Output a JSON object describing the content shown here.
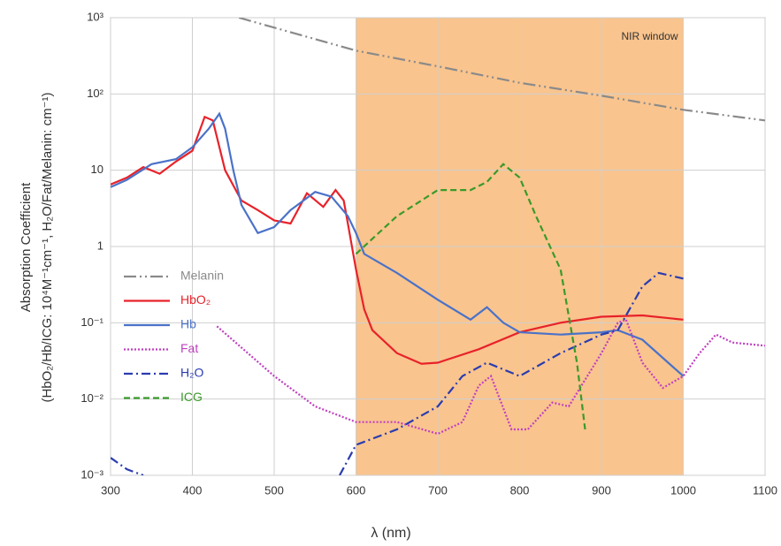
{
  "chart_data": {
    "type": "line",
    "y_label": [
      "Absorption Coefficient",
      "(HbO₂/Hb/ICG: 10⁴M⁻¹cm⁻¹, H₂O/Fat/Melanin: cm⁻¹)"
    ],
    "x_label": "λ (nm)",
    "annotation": "NIR window",
    "window": [
      600,
      1000
    ],
    "window_color": "#f9c48e",
    "xlim": [
      300,
      1100
    ],
    "xticks": [
      300,
      400,
      500,
      600,
      700,
      800,
      900,
      1000,
      1100
    ],
    "ylim": [
      0.001,
      1000
    ],
    "yticks": [
      {
        "value": 0.001,
        "label": "10⁻³"
      },
      {
        "value": 0.01,
        "label": "10⁻²"
      },
      {
        "value": 0.1,
        "label": "10⁻¹"
      },
      1,
      10,
      {
        "value": 100,
        "label": "10²"
      },
      {
        "value": 1000,
        "label": "10³"
      }
    ],
    "log_y": true,
    "grid": true,
    "legend": "left",
    "series": [
      {
        "name": "Melanin",
        "color": "#8a8a8a",
        "dash": "14 4 2 4 2 4",
        "x": [
          457,
          600,
          700,
          800,
          900,
          1000,
          1100
        ],
        "values": [
          1000,
          370,
          230,
          140,
          95,
          62,
          45
        ]
      },
      {
        "name": "HbO₂",
        "color": "#e8222a",
        "dash": "",
        "x": [
          300,
          320,
          340,
          360,
          380,
          400,
          415,
          425,
          440,
          460,
          480,
          500,
          520,
          540,
          560,
          575,
          585,
          590,
          600,
          610,
          620,
          650,
          680,
          700,
          750,
          800,
          850,
          900,
          950,
          1000
        ],
        "values": [
          6.5,
          8,
          11,
          9,
          13,
          18,
          50,
          45,
          10,
          4,
          3,
          2.2,
          2,
          5,
          3.3,
          5.5,
          4,
          2,
          0.5,
          0.15,
          0.08,
          0.04,
          0.029,
          0.03,
          0.045,
          0.075,
          0.1,
          0.12,
          0.125,
          0.11
        ]
      },
      {
        "name": "Hb",
        "color": "#4a72c8",
        "dash": "",
        "x": [
          300,
          320,
          350,
          380,
          400,
          420,
          433,
          440,
          450,
          460,
          480,
          500,
          520,
          550,
          570,
          590,
          600,
          610,
          650,
          700,
          740,
          760,
          780,
          800,
          850,
          900,
          920,
          950,
          1000
        ],
        "values": [
          6,
          7.5,
          12,
          14,
          20,
          35,
          55,
          35,
          10,
          3.5,
          1.5,
          1.8,
          3,
          5.2,
          4.5,
          2.5,
          1.5,
          0.8,
          0.45,
          0.2,
          0.11,
          0.16,
          0.1,
          0.075,
          0.07,
          0.075,
          0.08,
          0.06,
          0.02
        ]
      },
      {
        "name": "Fat",
        "color": "#c040c0",
        "dash": "2 2",
        "x": [
          430,
          500,
          550,
          600,
          650,
          700,
          730,
          750,
          765,
          790,
          810,
          840,
          860,
          900,
          920,
          930,
          950,
          975,
          1000,
          1020,
          1040,
          1060,
          1100
        ],
        "values": [
          0.09,
          0.02,
          0.008,
          0.005,
          0.005,
          0.0035,
          0.005,
          0.015,
          0.02,
          0.004,
          0.004,
          0.009,
          0.008,
          0.04,
          0.1,
          0.11,
          0.03,
          0.014,
          0.02,
          0.04,
          0.07,
          0.055,
          0.05
        ]
      },
      {
        "name": "H₂O",
        "color": "#2a3cb0",
        "dash": "10 4 2 4",
        "x": [
          300,
          320,
          340,
          460,
          580,
          600,
          650,
          700,
          730,
          760,
          800,
          850,
          900,
          920,
          950,
          970,
          1000
        ],
        "values": [
          0.0017,
          0.0012,
          0.001,
          null,
          0.001,
          0.0025,
          0.004,
          0.008,
          0.02,
          0.03,
          0.02,
          0.04,
          0.07,
          0.08,
          0.3,
          0.45,
          0.38
        ]
      },
      {
        "name": "ICG",
        "color": "#3a9a2a",
        "dash": "7 4",
        "x": [
          600,
          650,
          700,
          740,
          760,
          780,
          800,
          820,
          850,
          870,
          880
        ],
        "values": [
          0.8,
          2.5,
          5.5,
          5.5,
          7,
          12,
          8,
          2.5,
          0.5,
          0.03,
          0.004
        ]
      }
    ]
  }
}
